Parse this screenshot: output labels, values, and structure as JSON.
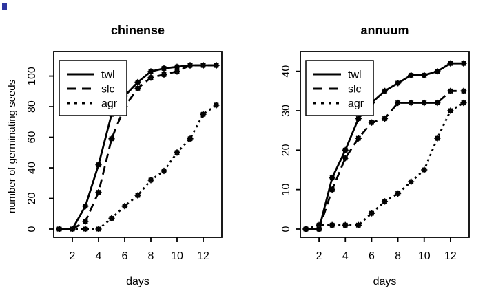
{
  "figure": {
    "background": "#ffffff",
    "foreground": "#000000",
    "corner_artifact_color": "#2d35a0"
  },
  "chart_data": [
    {
      "type": "line",
      "title": "chinense",
      "xlabel": "days",
      "ylabel": "number of germinating seeds",
      "x": [
        1,
        2,
        3,
        4,
        5,
        6,
        7,
        8,
        9,
        10,
        11,
        12,
        13
      ],
      "xticks": [
        2,
        4,
        6,
        8,
        10,
        12
      ],
      "yticks": [
        0,
        20,
        40,
        60,
        80,
        100
      ],
      "ylim": [
        0,
        116
      ],
      "grid": false,
      "legend_position": "top-left",
      "legend_labels": [
        "twl",
        "slc",
        "agr"
      ],
      "series": [
        {
          "name": "twl",
          "linestyle": "solid",
          "marker": "filled-star",
          "values": [
            0,
            0,
            15,
            42,
            75,
            87,
            96,
            103,
            105,
            106,
            107,
            107,
            107
          ]
        },
        {
          "name": "slc",
          "linestyle": "dashed",
          "marker": "open-star",
          "values": [
            0,
            0,
            5,
            24,
            59,
            80,
            92,
            99,
            101,
            103,
            107,
            107,
            107
          ]
        },
        {
          "name": "agr",
          "linestyle": "dotted",
          "marker": "open-star",
          "values": [
            0,
            0,
            0,
            0,
            7,
            15,
            22,
            32,
            38,
            50,
            59,
            75,
            81
          ]
        }
      ]
    },
    {
      "type": "line",
      "title": "annuum",
      "xlabel": "days",
      "ylabel": "",
      "x": [
        1,
        2,
        3,
        4,
        5,
        6,
        7,
        8,
        9,
        10,
        11,
        12,
        13
      ],
      "xticks": [
        2,
        4,
        6,
        8,
        10,
        12
      ],
      "yticks": [
        0,
        10,
        20,
        30,
        40
      ],
      "ylim": [
        0,
        45
      ],
      "grid": false,
      "legend_position": "top-left",
      "legend_labels": [
        "twl",
        "slc",
        "agr"
      ],
      "series": [
        {
          "name": "twl",
          "linestyle": "solid",
          "marker": "filled-star",
          "values": [
            0,
            0,
            13,
            20,
            28,
            32,
            35,
            37,
            39,
            39,
            40,
            42,
            42
          ]
        },
        {
          "name": "slc",
          "linestyle": "dashed",
          "marker": "open-star",
          "values": [
            0,
            0,
            10,
            18,
            23,
            27,
            28,
            32,
            32,
            32,
            32,
            35,
            35
          ]
        },
        {
          "name": "agr",
          "linestyle": "dotted",
          "marker": "open-star",
          "values": [
            0,
            1,
            1,
            1,
            1,
            4,
            7,
            9,
            12,
            15,
            23,
            30,
            32
          ]
        }
      ]
    }
  ]
}
